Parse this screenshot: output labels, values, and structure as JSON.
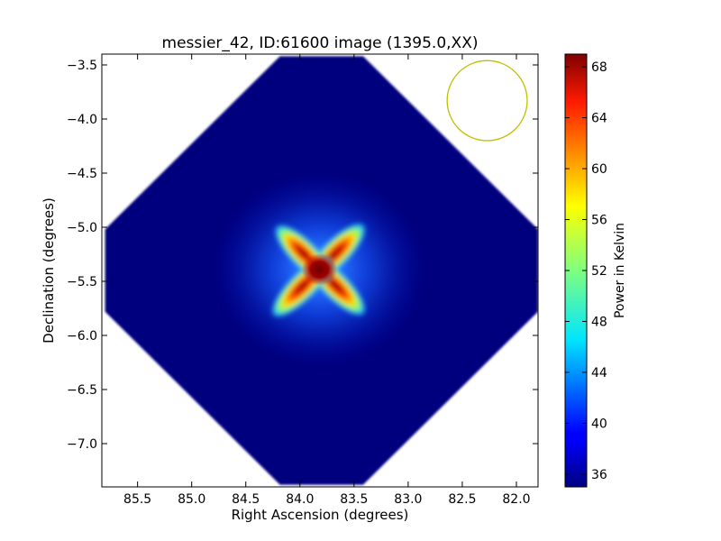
{
  "chart_data": {
    "type": "heatmap",
    "title": "messier_42, ID:61600 image (1395.0,XX)",
    "xlabel": "Right Ascension (degrees)",
    "ylabel": "Declination (degrees)",
    "xlim": [
      85.83,
      81.8
    ],
    "ylim": [
      -7.4,
      -3.4
    ],
    "x_ticks": [
      85.5,
      85.0,
      84.5,
      84.0,
      83.5,
      83.0,
      82.5,
      82.0
    ],
    "x_tick_labels": [
      "85.5",
      "85.0",
      "84.5",
      "84.0",
      "83.5",
      "83.0",
      "82.5",
      "82.0"
    ],
    "y_ticks": [
      -3.5,
      -4.0,
      -4.5,
      -5.0,
      -5.5,
      -6.0,
      -6.5,
      -7.0
    ],
    "y_tick_labels": [
      "−3.5",
      "−4.0",
      "−4.5",
      "−5.0",
      "−5.5",
      "−6.0",
      "−6.5",
      "−7.0"
    ],
    "colormap": "jet",
    "colorbar": {
      "label": "Power in Kelvin",
      "min": 35,
      "max": 69,
      "ticks": [
        36,
        40,
        44,
        48,
        52,
        56,
        60,
        64,
        68
      ],
      "tick_labels": [
        "36",
        "40",
        "44",
        "48",
        "52",
        "56",
        "60",
        "64",
        "68"
      ]
    },
    "map_footprint": {
      "shape": "diamond",
      "center_ra": 83.8,
      "center_dec": -5.4,
      "half_extent_ra": 2.0,
      "half_extent_dec": 1.98,
      "background_value": 36
    },
    "source": {
      "center_ra": 83.82,
      "center_dec": -5.39,
      "peak_value": 69,
      "shape": "four-armed cross, arms toward upper-left, upper-right, lower-left and lower-right"
    },
    "beam": {
      "center_ra": 82.27,
      "center_dec": -3.83,
      "radius_deg": 0.37,
      "color": "#bfbf00"
    },
    "colors": {
      "axes": "#000000",
      "background": "#ffffff"
    }
  }
}
